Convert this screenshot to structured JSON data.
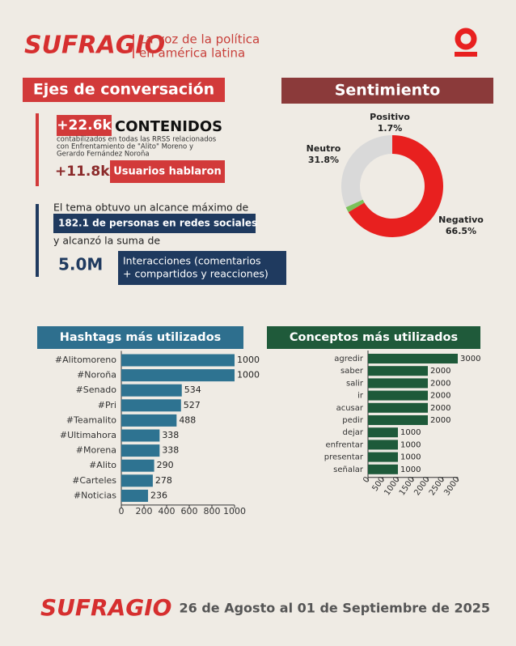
{
  "header": {
    "logo": "SUFRAGIO",
    "tagline": [
      "La voz de la política",
      "en américa latina"
    ]
  },
  "sections": {
    "left_title": "Ejes de conversación",
    "right_title": "Sentimiento"
  },
  "stats": {
    "contents_value": "+22.6k",
    "contents_label": "CONTENIDOS",
    "contents_description": [
      "contabilizados en todas las RRSS relacionados",
      "con Enfrentamiento de \"Alito\" Moreno y",
      "Gerardo Fernández Noroña"
    ],
    "users_value": "+11.8k",
    "users_label": "Usuarios hablaron",
    "reach_intro": "El tema obtuvo un alcance máximo de",
    "reach_value": "182.1 de personas en redes sociales",
    "sum_intro": "y alcanzó la suma de",
    "interactions_value": "5.0M",
    "interactions_label": [
      "Interacciones (comentarios",
      "+ compartidos y reacciones)"
    ]
  },
  "chart_data": [
    {
      "type": "donut",
      "categories": [
        "Positivo",
        "Neutro",
        "Negativo"
      ],
      "values": [
        1.7,
        31.8,
        66.5
      ],
      "value_labels": [
        "1.7%",
        "31.8%",
        "66.5%"
      ],
      "colors": [
        "#7bc25a",
        "#d9d9d9",
        "#e8201f"
      ]
    },
    {
      "type": "bar",
      "orientation": "horizontal",
      "title": "Hashtags más utilizados",
      "color": "#2e7391",
      "title_color": "#2e6f8e",
      "categories": [
        "#Alitomoreno",
        "#Noroña",
        "#Senado",
        "#Pri",
        "#Teamalito",
        "#Ultimahora",
        "#Morena",
        "#Alito",
        "#Carteles",
        "#Noticias"
      ],
      "values": [
        1000,
        1000,
        534,
        527,
        488,
        338,
        338,
        290,
        278,
        236
      ],
      "xlim": [
        0,
        1000
      ],
      "xticks": [
        0,
        200,
        400,
        600,
        800,
        1000
      ]
    },
    {
      "type": "bar",
      "orientation": "horizontal",
      "title": "Conceptos más utilizados",
      "color": "#1e5a3a",
      "title_color": "#1f5a3a",
      "categories": [
        "agredir",
        "saber",
        "salir",
        "ir",
        "acusar",
        "pedir",
        "dejar",
        "enfrentar",
        "presentar",
        "señalar"
      ],
      "values": [
        3000,
        2000,
        2000,
        2000,
        2000,
        2000,
        1000,
        1000,
        1000,
        1000
      ],
      "xlim": [
        0,
        3000
      ],
      "xticks": [
        0,
        500,
        1000,
        1500,
        2000,
        2500,
        3000
      ]
    }
  ],
  "footer": {
    "logo": "SUFRAGIO",
    "dates": "26 de Agosto al 01 de Septiembre de 2025"
  }
}
